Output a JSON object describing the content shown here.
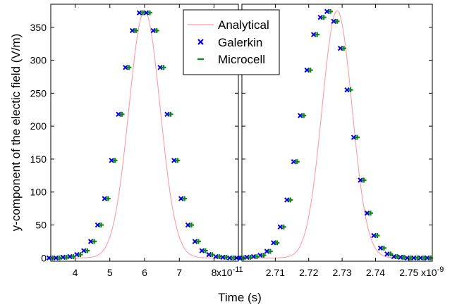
{
  "chart_data": {
    "type": "scatter",
    "ylabel": "y-component of the electic field (V/m)",
    "xlabel": "Time (s)",
    "ylim": [
      -5,
      385
    ],
    "yticks": [
      0,
      50,
      100,
      150,
      200,
      250,
      300,
      350
    ],
    "grid": false,
    "legend_placement": "top-center",
    "legend": [
      {
        "name": "Analytical",
        "marker": "line",
        "color": "#ff9aa8"
      },
      {
        "name": "Galerkin",
        "marker": "x",
        "color": "#0000ee"
      },
      {
        "name": "Microcell",
        "marker": "+",
        "color": "#118811"
      }
    ],
    "panels": [
      {
        "id": "left",
        "x_exponent": "x10",
        "x_exponent_power": "-11",
        "xlim": [
          3.3,
          8.7
        ],
        "xticks": [
          4,
          5,
          6,
          7,
          8
        ],
        "xtick_labels": [
          "4",
          "5",
          "6",
          "7",
          "8"
        ],
        "pulse_center": 6.0,
        "pulse_sigma": 0.45,
        "peak": 375,
        "x": [
          3.3,
          3.5,
          3.7,
          3.9,
          4.1,
          4.3,
          4.5,
          4.7,
          4.9,
          5.1,
          5.3,
          5.5,
          5.7,
          5.9,
          6.1,
          6.3,
          6.5,
          6.7,
          6.9,
          7.1,
          7.3,
          7.5,
          7.7,
          7.9,
          8.1,
          8.3,
          8.5,
          8.7
        ],
        "series": [
          {
            "name": "Analytical",
            "y": [
              0,
              0,
              1,
              2,
              5,
              11,
              25,
              50,
              90,
              148,
              218,
              289,
              345,
              372,
              372,
              345,
              289,
              218,
              148,
              90,
              50,
              25,
              11,
              5,
              2,
              1,
              0,
              0
            ]
          },
          {
            "name": "Galerkin",
            "y": [
              0,
              0,
              1,
              2,
              5,
              11,
              25,
              50,
              90,
              148,
              218,
              289,
              345,
              372,
              372,
              345,
              289,
              218,
              148,
              90,
              50,
              25,
              11,
              5,
              2,
              1,
              0,
              0
            ]
          },
          {
            "name": "Microcell",
            "y": [
              0,
              0,
              1,
              2,
              5,
              11,
              25,
              50,
              90,
              148,
              218,
              289,
              345,
              372,
              372,
              345,
              289,
              218,
              148,
              90,
              50,
              25,
              11,
              5,
              2,
              1,
              0,
              0
            ]
          }
        ]
      },
      {
        "id": "right",
        "x_exponent": "x10",
        "x_exponent_power": "-9",
        "xlim": [
          2.7,
          2.757
        ],
        "xticks": [
          2.71,
          2.72,
          2.73,
          2.74,
          2.75
        ],
        "xtick_labels": [
          "2.71",
          "2.72",
          "2.73",
          "2.74",
          "2.75"
        ],
        "pulse_center": 2.7285,
        "pulse_sigma": 0.0045,
        "peak": 375,
        "x": [
          2.7,
          2.702,
          2.704,
          2.706,
          2.708,
          2.71,
          2.712,
          2.714,
          2.716,
          2.718,
          2.72,
          2.722,
          2.724,
          2.726,
          2.728,
          2.73,
          2.732,
          2.734,
          2.736,
          2.738,
          2.74,
          2.742,
          2.744,
          2.746,
          2.748,
          2.75,
          2.752,
          2.754,
          2.756
        ],
        "series": [
          {
            "name": "Analytical",
            "y": [
              0,
              1,
              2,
              4,
              10,
              23,
              47,
              88,
              146,
              216,
              285,
              339,
              365,
              374,
              359,
              318,
              255,
              183,
              118,
              68,
              34,
              15,
              6,
              2,
              1,
              0,
              0,
              0,
              0
            ]
          },
          {
            "name": "Galerkin",
            "y": [
              0,
              1,
              2,
              4,
              10,
              23,
              47,
              88,
              146,
              216,
              285,
              339,
              365,
              374,
              359,
              318,
              255,
              183,
              118,
              68,
              34,
              15,
              6,
              2,
              1,
              0,
              0,
              0,
              0
            ]
          },
          {
            "name": "Microcell",
            "y": [
              0,
              1,
              2,
              4,
              10,
              23,
              47,
              88,
              146,
              216,
              285,
              339,
              365,
              374,
              359,
              318,
              255,
              183,
              118,
              68,
              34,
              15,
              6,
              2,
              1,
              0,
              0,
              0,
              0
            ]
          }
        ]
      }
    ]
  }
}
